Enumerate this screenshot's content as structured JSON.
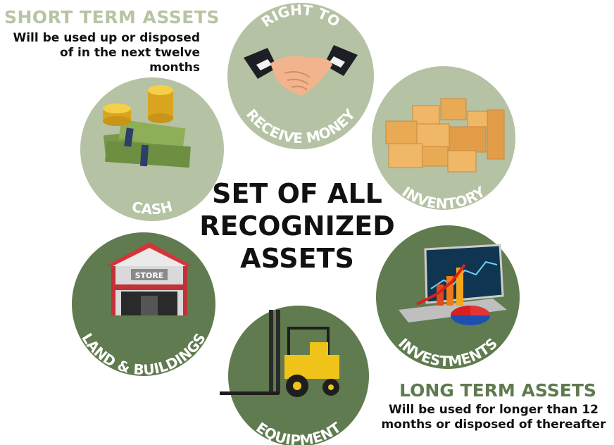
{
  "center": {
    "line1": "SET OF ALL",
    "line2": "RECOGNIZED",
    "line3": "ASSETS"
  },
  "short_term": {
    "title": "SHORT TERM ASSETS",
    "line1": "Will be used up or disposed",
    "line2": "of in the next twelve months"
  },
  "long_term": {
    "title": "LONG TERM ASSETS",
    "line1": "Will be used for longer than 12",
    "line2": "months or disposed of thereafter"
  },
  "circles": {
    "right_to_receive_money": {
      "top_label": "RIGHT TO",
      "bottom_label": "RECEIVE MONEY",
      "color": "#b5c2a4"
    },
    "cash": {
      "label": "CASH",
      "color": "#b5c2a4"
    },
    "inventory": {
      "label": "INVENTORY",
      "color": "#b5c2a4"
    },
    "land_buildings": {
      "label": "LAND & BUILDINGS",
      "sign": "STORE",
      "color": "#607b4f"
    },
    "equipment": {
      "label": "EQUIPMENT",
      "color": "#607b4f"
    },
    "investments": {
      "label": "INVESTMENTS",
      "color": "#607b4f"
    }
  },
  "colors": {
    "light_green": "#b5c2a4",
    "dark_green": "#607b4f",
    "short_title": "#b7c4a4",
    "long_title": "#5f7a4e"
  }
}
